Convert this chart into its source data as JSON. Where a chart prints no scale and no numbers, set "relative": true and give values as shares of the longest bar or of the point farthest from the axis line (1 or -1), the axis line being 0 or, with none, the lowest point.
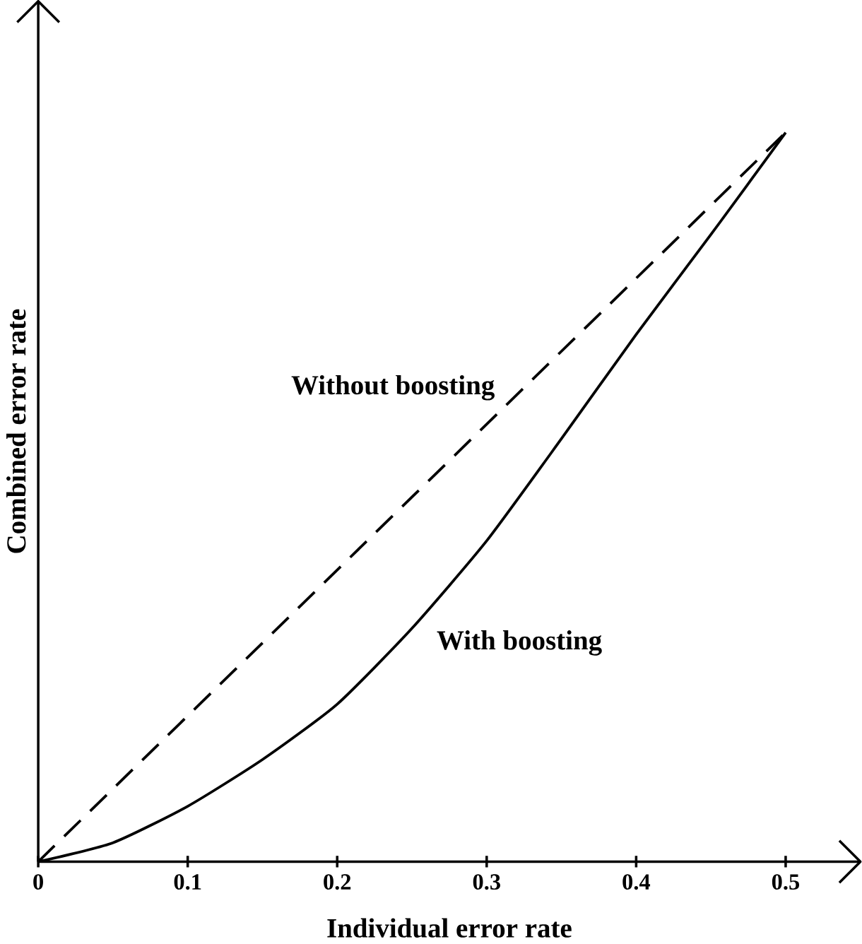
{
  "chart_data": {
    "type": "line",
    "xlabel": "Individual error rate",
    "ylabel": "Combined error rate",
    "relative": true,
    "xlim": [
      0,
      0.55
    ],
    "xticks": [
      0,
      0.1,
      0.2,
      0.3,
      0.4,
      0.5
    ],
    "series": [
      {
        "name": "Without boosting",
        "color": "#000000",
        "line_style": "dashed",
        "x": [
          0,
          0.5
        ],
        "values": [
          0,
          1
        ]
      },
      {
        "name": "With boosting",
        "color": "#000000",
        "line_style": "solid",
        "x": [
          0,
          0.05,
          0.1,
          0.15,
          0.2,
          0.25,
          0.3,
          0.35,
          0.4,
          0.45,
          0.5
        ],
        "values": [
          0,
          0.026,
          0.076,
          0.14,
          0.216,
          0.32,
          0.44,
          0.58,
          0.723,
          0.86,
          1
        ]
      }
    ]
  }
}
